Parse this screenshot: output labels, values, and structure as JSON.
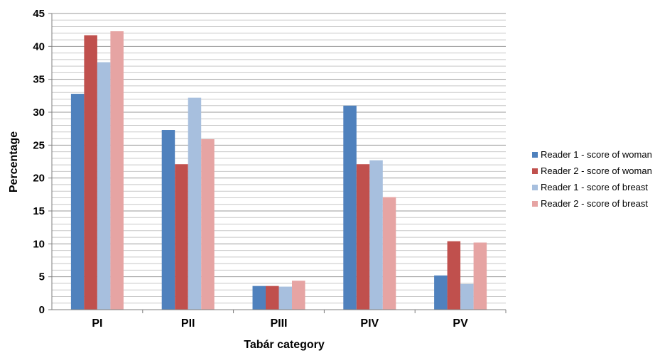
{
  "chart_data": {
    "type": "bar",
    "title": "",
    "xlabel": "Tabár category",
    "ylabel": "Percentage",
    "categories": [
      "PI",
      "PII",
      "PIII",
      "PIV",
      "PV"
    ],
    "ylim": [
      0,
      45
    ],
    "yticks": [
      0,
      5,
      10,
      15,
      20,
      25,
      30,
      35,
      40,
      45
    ],
    "grid": true,
    "legend_position": "right",
    "series": [
      {
        "name": "Reader 1 - score of woman",
        "color": "#4F81BD",
        "values": [
          32.8,
          27.3,
          3.6,
          31.0,
          5.2
        ]
      },
      {
        "name": "Reader 2 - score of woman",
        "color": "#C0504D",
        "values": [
          41.7,
          22.1,
          3.6,
          22.1,
          10.4
        ]
      },
      {
        "name": "Reader 1 - score of breast",
        "color": "#A7BFDE",
        "values": [
          37.6,
          32.2,
          3.5,
          22.7,
          3.9
        ]
      },
      {
        "name": "Reader 2 - score of breast",
        "color": "#E6A4A3",
        "values": [
          42.3,
          25.9,
          4.4,
          17.1,
          10.2
        ]
      }
    ]
  }
}
